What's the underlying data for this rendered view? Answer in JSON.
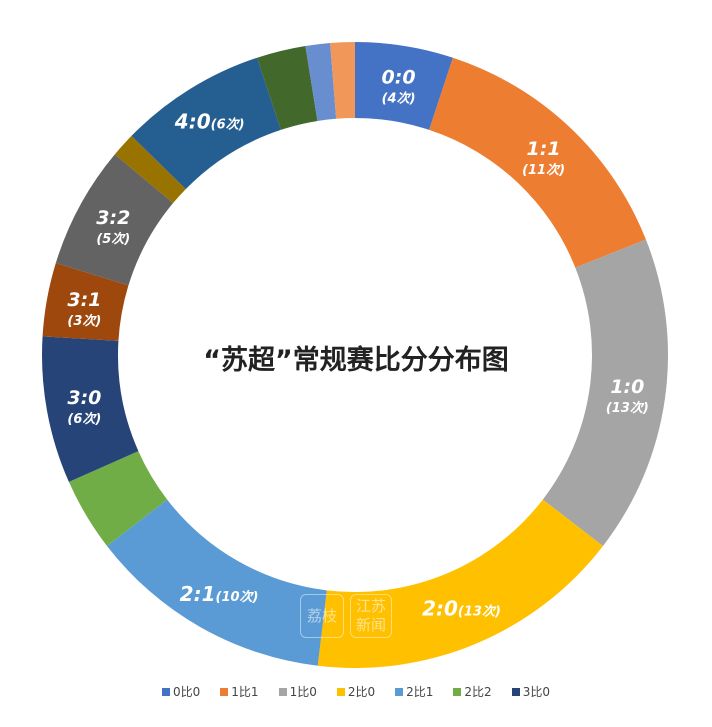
{
  "chart_data": {
    "type": "pie",
    "subtype": "donut",
    "title": "“苏超”常规赛比分分布图",
    "unit": "次",
    "slices": [
      {
        "name": "0:0",
        "value": 4,
        "label": "0:0",
        "count_label": "(4次)",
        "color": "#4472c4"
      },
      {
        "name": "1:1",
        "value": 11,
        "label": "1:1",
        "count_label": "(11次)",
        "color": "#ed7d31"
      },
      {
        "name": "1:0",
        "value": 13,
        "label": "1:0",
        "count_label": "(13次)",
        "color": "#a5a5a5"
      },
      {
        "name": "2:0",
        "value": 13,
        "label": "2:0",
        "count_label": "(13次)",
        "color": "#ffc000"
      },
      {
        "name": "2:1",
        "value": 10,
        "label": "2:1",
        "count_label": "(10次)",
        "color": "#5b9bd5"
      },
      {
        "name": "2:2",
        "value": 3,
        "label": "",
        "count_label": "",
        "color": "#70ad47"
      },
      {
        "name": "3:0",
        "value": 6,
        "label": "3:0",
        "count_label": "(6次)",
        "color": "#264478"
      },
      {
        "name": "3:1",
        "value": 3,
        "label": "3:1",
        "count_label": "(3次)",
        "color": "#9e480e"
      },
      {
        "name": "3:2",
        "value": 5,
        "label": "3:2",
        "count_label": "(5次)",
        "color": "#636363"
      },
      {
        "name": "other-1",
        "value": 1,
        "label": "",
        "count_label": "",
        "color": "#997300"
      },
      {
        "name": "4:0",
        "value": 6,
        "label": "4:0",
        "count_label": "(6次)",
        "color": "#255e91"
      },
      {
        "name": "other-2",
        "value": 2,
        "label": "",
        "count_label": "",
        "color": "#43682b"
      },
      {
        "name": "other-3",
        "value": 1,
        "label": "",
        "count_label": "",
        "color": "#698ed0"
      },
      {
        "name": "other-4",
        "value": 1,
        "label": "",
        "count_label": "",
        "color": "#f1975a"
      }
    ],
    "legend": [
      {
        "label": "0比0",
        "color": "#4472c4"
      },
      {
        "label": "1比1",
        "color": "#ed7d31"
      },
      {
        "label": "1比0",
        "color": "#a5a5a5"
      },
      {
        "label": "2比0",
        "color": "#ffc000"
      },
      {
        "label": "2比1",
        "color": "#5b9bd5"
      },
      {
        "label": "2比2",
        "color": "#70ad47"
      },
      {
        "label": "3比0",
        "color": "#264478"
      }
    ],
    "legend_position": "bottom"
  },
  "watermark": {
    "logo1": "荔枝",
    "logo2": "江苏新闻"
  }
}
